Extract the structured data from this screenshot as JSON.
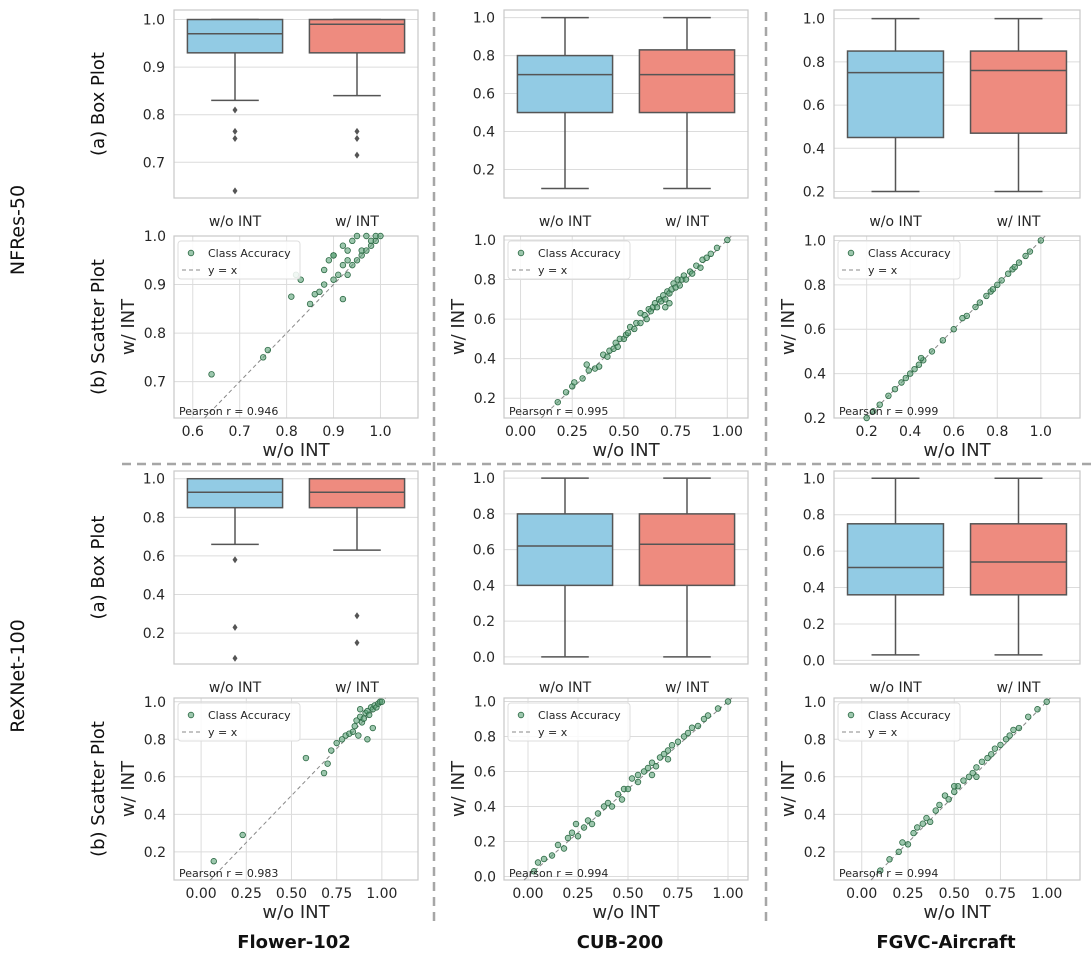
{
  "colors": {
    "without": "#92cbe4",
    "with": "#ee8b7f",
    "scatter": "#5aa177",
    "scatter_edge": "#2d6a45",
    "grid": "#dcdcdc",
    "divider": "#a6a6a6"
  },
  "labels": {
    "models": [
      "NFRes-50",
      "ReXNet-100"
    ],
    "datasets": [
      "Flower-102",
      "CUB-200",
      "FGVC-Aircraft"
    ],
    "box_row": "(a) Box Plot",
    "scatter_row": "(b) Scatter Plot",
    "categories": [
      "w/o INT",
      "w/ INT"
    ],
    "xlabel": "w/o INT",
    "ylabel": "w/ INT",
    "legend_points": "Class Accuracy",
    "legend_line": "y = x",
    "pearson_prefix": "Pearson r = "
  },
  "chart_data": [
    {
      "type": "box",
      "model": "NFRes-50",
      "dataset": "Flower-102",
      "ylim": [
        0.625,
        1.02
      ],
      "yticks": [
        0.7,
        0.8,
        0.9,
        1.0
      ],
      "series": [
        {
          "name": "w/o INT",
          "whislo": 0.83,
          "q1": 0.93,
          "median": 0.97,
          "q3": 1.0,
          "whishi": 1.0,
          "fliers": [
            0.81,
            0.765,
            0.75,
            0.64
          ]
        },
        {
          "name": "w/ INT",
          "whislo": 0.84,
          "q1": 0.93,
          "median": 0.99,
          "q3": 1.0,
          "whishi": 1.0,
          "fliers": [
            0.765,
            0.75,
            0.715
          ]
        }
      ]
    },
    {
      "type": "box",
      "model": "NFRes-50",
      "dataset": "CUB-200",
      "ylim": [
        0.05,
        1.04
      ],
      "yticks": [
        0.2,
        0.4,
        0.6,
        0.8,
        1.0
      ],
      "series": [
        {
          "name": "w/o INT",
          "whislo": 0.1,
          "q1": 0.5,
          "median": 0.7,
          "q3": 0.8,
          "whishi": 1.0,
          "fliers": []
        },
        {
          "name": "w/ INT",
          "whislo": 0.1,
          "q1": 0.5,
          "median": 0.7,
          "q3": 0.83,
          "whishi": 1.0,
          "fliers": []
        }
      ]
    },
    {
      "type": "box",
      "model": "NFRes-50",
      "dataset": "FGVC-Aircraft",
      "ylim": [
        0.17,
        1.04
      ],
      "yticks": [
        0.2,
        0.4,
        0.6,
        0.8,
        1.0
      ],
      "series": [
        {
          "name": "w/o INT",
          "whislo": 0.2,
          "q1": 0.45,
          "median": 0.75,
          "q3": 0.85,
          "whishi": 1.0,
          "fliers": []
        },
        {
          "name": "w/ INT",
          "whislo": 0.2,
          "q1": 0.47,
          "median": 0.76,
          "q3": 0.85,
          "whishi": 1.0,
          "fliers": []
        }
      ]
    },
    {
      "type": "scatter",
      "model": "NFRes-50",
      "dataset": "Flower-102",
      "xlim": [
        0.56,
        1.08
      ],
      "ylim": [
        0.625,
        1.0
      ],
      "xticks": [
        0.6,
        0.7,
        0.8,
        0.9,
        1.0
      ],
      "yticks": [
        0.7,
        0.8,
        0.9,
        1.0
      ],
      "pearson": "0.946",
      "points": [
        [
          0.64,
          0.715
        ],
        [
          0.75,
          0.75
        ],
        [
          0.76,
          0.765
        ],
        [
          0.81,
          0.875
        ],
        [
          0.82,
          0.92
        ],
        [
          0.83,
          0.91
        ],
        [
          0.85,
          0.86
        ],
        [
          0.86,
          0.88
        ],
        [
          0.87,
          0.885
        ],
        [
          0.88,
          0.9
        ],
        [
          0.88,
          0.93
        ],
        [
          0.89,
          0.95
        ],
        [
          0.9,
          0.91
        ],
        [
          0.9,
          0.96
        ],
        [
          0.91,
          0.92
        ],
        [
          0.92,
          0.87
        ],
        [
          0.92,
          0.94
        ],
        [
          0.92,
          0.98
        ],
        [
          0.93,
          0.95
        ],
        [
          0.93,
          0.92
        ],
        [
          0.94,
          0.94
        ],
        [
          0.94,
          0.99
        ],
        [
          0.95,
          0.95
        ],
        [
          0.95,
          1.0
        ],
        [
          0.96,
          0.96
        ],
        [
          0.96,
          0.97
        ],
        [
          0.97,
          1.0
        ],
        [
          0.97,
          0.97
        ],
        [
          0.98,
          0.98
        ],
        [
          0.98,
          0.99
        ],
        [
          0.99,
          0.99
        ],
        [
          0.99,
          1.0
        ],
        [
          1.0,
          1.0
        ],
        [
          0.9,
          0.96
        ],
        [
          0.93,
          0.97
        ]
      ]
    },
    {
      "type": "scatter",
      "model": "NFRes-50",
      "dataset": "CUB-200",
      "xlim": [
        -0.08,
        1.1
      ],
      "ylim": [
        0.1,
        1.02
      ],
      "xticks": [
        0.0,
        0.25,
        0.5,
        0.75,
        1.0
      ],
      "yticks": [
        0.2,
        0.4,
        0.6,
        0.8,
        1.0
      ],
      "pearson": "0.995",
      "points": [
        [
          0.18,
          0.18
        ],
        [
          0.22,
          0.23
        ],
        [
          0.25,
          0.26
        ],
        [
          0.26,
          0.28
        ],
        [
          0.3,
          0.3
        ],
        [
          0.32,
          0.37
        ],
        [
          0.33,
          0.34
        ],
        [
          0.36,
          0.35
        ],
        [
          0.38,
          0.36
        ],
        [
          0.4,
          0.42
        ],
        [
          0.42,
          0.41
        ],
        [
          0.43,
          0.44
        ],
        [
          0.45,
          0.45
        ],
        [
          0.46,
          0.48
        ],
        [
          0.47,
          0.46
        ],
        [
          0.48,
          0.5
        ],
        [
          0.5,
          0.5
        ],
        [
          0.51,
          0.52
        ],
        [
          0.52,
          0.53
        ],
        [
          0.53,
          0.56
        ],
        [
          0.55,
          0.55
        ],
        [
          0.56,
          0.58
        ],
        [
          0.58,
          0.58
        ],
        [
          0.6,
          0.62
        ],
        [
          0.61,
          0.6
        ],
        [
          0.62,
          0.65
        ],
        [
          0.63,
          0.64
        ],
        [
          0.64,
          0.66
        ],
        [
          0.65,
          0.68
        ],
        [
          0.66,
          0.66
        ],
        [
          0.67,
          0.7
        ],
        [
          0.68,
          0.69
        ],
        [
          0.69,
          0.72
        ],
        [
          0.7,
          0.7
        ],
        [
          0.71,
          0.74
        ],
        [
          0.72,
          0.73
        ],
        [
          0.73,
          0.75
        ],
        [
          0.74,
          0.78
        ],
        [
          0.75,
          0.76
        ],
        [
          0.76,
          0.8
        ],
        [
          0.77,
          0.77
        ],
        [
          0.78,
          0.8
        ],
        [
          0.79,
          0.82
        ],
        [
          0.8,
          0.8
        ],
        [
          0.82,
          0.84
        ],
        [
          0.83,
          0.83
        ],
        [
          0.85,
          0.87
        ],
        [
          0.87,
          0.86
        ],
        [
          0.88,
          0.9
        ],
        [
          0.9,
          0.91
        ],
        [
          0.92,
          0.93
        ],
        [
          0.95,
          0.96
        ],
        [
          1.0,
          1.0
        ],
        [
          0.7,
          0.66
        ],
        [
          0.72,
          0.68
        ],
        [
          0.58,
          0.63
        ]
      ]
    },
    {
      "type": "scatter",
      "model": "NFRes-50",
      "dataset": "FGVC-Aircraft",
      "xlim": [
        0.05,
        1.18
      ],
      "ylim": [
        0.2,
        1.02
      ],
      "xticks": [
        0.2,
        0.4,
        0.6,
        0.8,
        1.0
      ],
      "yticks": [
        0.2,
        0.4,
        0.6,
        0.8,
        1.0
      ],
      "pearson": "0.999",
      "points": [
        [
          0.2,
          0.2
        ],
        [
          0.23,
          0.23
        ],
        [
          0.26,
          0.26
        ],
        [
          0.3,
          0.3
        ],
        [
          0.33,
          0.33
        ],
        [
          0.36,
          0.36
        ],
        [
          0.38,
          0.38
        ],
        [
          0.4,
          0.4
        ],
        [
          0.42,
          0.42
        ],
        [
          0.44,
          0.44
        ],
        [
          0.46,
          0.46
        ],
        [
          0.45,
          0.47
        ],
        [
          0.5,
          0.5
        ],
        [
          0.55,
          0.55
        ],
        [
          0.6,
          0.6
        ],
        [
          0.64,
          0.65
        ],
        [
          0.66,
          0.66
        ],
        [
          0.7,
          0.7
        ],
        [
          0.72,
          0.72
        ],
        [
          0.75,
          0.75
        ],
        [
          0.77,
          0.77
        ],
        [
          0.78,
          0.78
        ],
        [
          0.8,
          0.8
        ],
        [
          0.82,
          0.82
        ],
        [
          0.85,
          0.85
        ],
        [
          0.87,
          0.87
        ],
        [
          0.88,
          0.88
        ],
        [
          0.9,
          0.9
        ],
        [
          0.93,
          0.93
        ],
        [
          0.95,
          0.95
        ],
        [
          1.0,
          1.0
        ]
      ]
    },
    {
      "type": "box",
      "model": "ReXNet-100",
      "dataset": "Flower-102",
      "ylim": [
        0.04,
        1.04
      ],
      "yticks": [
        0.2,
        0.4,
        0.6,
        0.8,
        1.0
      ],
      "series": [
        {
          "name": "w/o INT",
          "whislo": 0.66,
          "q1": 0.85,
          "median": 0.93,
          "q3": 1.0,
          "whishi": 1.0,
          "fliers": [
            0.58,
            0.23,
            0.07
          ]
        },
        {
          "name": "w/ INT",
          "whislo": 0.63,
          "q1": 0.85,
          "median": 0.93,
          "q3": 1.0,
          "whishi": 1.0,
          "fliers": [
            0.29,
            0.15
          ]
        }
      ]
    },
    {
      "type": "box",
      "model": "ReXNet-100",
      "dataset": "CUB-200",
      "ylim": [
        -0.04,
        1.04
      ],
      "yticks": [
        0.0,
        0.2,
        0.4,
        0.6,
        0.8,
        1.0
      ],
      "series": [
        {
          "name": "w/o INT",
          "whislo": 0.0,
          "q1": 0.4,
          "median": 0.62,
          "q3": 0.8,
          "whishi": 1.0,
          "fliers": []
        },
        {
          "name": "w/ INT",
          "whislo": 0.0,
          "q1": 0.4,
          "median": 0.63,
          "q3": 0.8,
          "whishi": 1.0,
          "fliers": []
        }
      ]
    },
    {
      "type": "box",
      "model": "ReXNet-100",
      "dataset": "FGVC-Aircraft",
      "ylim": [
        -0.02,
        1.04
      ],
      "yticks": [
        0.0,
        0.2,
        0.4,
        0.6,
        0.8,
        1.0
      ],
      "series": [
        {
          "name": "w/o INT",
          "whislo": 0.03,
          "q1": 0.36,
          "median": 0.51,
          "q3": 0.75,
          "whishi": 1.0,
          "fliers": []
        },
        {
          "name": "w/ INT",
          "whislo": 0.03,
          "q1": 0.36,
          "median": 0.54,
          "q3": 0.75,
          "whishi": 1.0,
          "fliers": []
        }
      ]
    },
    {
      "type": "scatter",
      "model": "ReXNet-100",
      "dataset": "Flower-102",
      "xlim": [
        -0.15,
        1.2
      ],
      "ylim": [
        0.05,
        1.02
      ],
      "xticks": [
        0.0,
        0.25,
        0.5,
        0.75,
        1.0
      ],
      "yticks": [
        0.2,
        0.4,
        0.6,
        0.8,
        1.0
      ],
      "pearson": "0.983",
      "points": [
        [
          0.07,
          0.15
        ],
        [
          0.23,
          0.29
        ],
        [
          0.58,
          0.7
        ],
        [
          0.68,
          0.62
        ],
        [
          0.7,
          0.67
        ],
        [
          0.72,
          0.74
        ],
        [
          0.75,
          0.78
        ],
        [
          0.78,
          0.8
        ],
        [
          0.8,
          0.82
        ],
        [
          0.82,
          0.83
        ],
        [
          0.84,
          0.84
        ],
        [
          0.85,
          0.87
        ],
        [
          0.86,
          0.9
        ],
        [
          0.87,
          0.82
        ],
        [
          0.88,
          0.92
        ],
        [
          0.89,
          0.89
        ],
        [
          0.9,
          0.91
        ],
        [
          0.91,
          0.94
        ],
        [
          0.92,
          0.95
        ],
        [
          0.93,
          0.93
        ],
        [
          0.94,
          0.97
        ],
        [
          0.95,
          0.96
        ],
        [
          0.96,
          0.98
        ],
        [
          0.97,
          0.97
        ],
        [
          0.98,
          0.99
        ],
        [
          0.99,
          1.0
        ],
        [
          1.0,
          1.0
        ],
        [
          0.92,
          0.8
        ],
        [
          0.95,
          0.86
        ],
        [
          0.88,
          0.96
        ]
      ]
    },
    {
      "type": "scatter",
      "model": "ReXNet-100",
      "dataset": "CUB-200",
      "xlim": [
        -0.12,
        1.1
      ],
      "ylim": [
        -0.02,
        1.02
      ],
      "xticks": [
        0.0,
        0.25,
        0.5,
        0.75,
        1.0
      ],
      "yticks": [
        0.0,
        0.2,
        0.4,
        0.6,
        0.8,
        1.0
      ],
      "pearson": "0.994",
      "points": [
        [
          0.03,
          0.03
        ],
        [
          0.05,
          0.08
        ],
        [
          0.08,
          0.1
        ],
        [
          0.12,
          0.12
        ],
        [
          0.15,
          0.18
        ],
        [
          0.18,
          0.16
        ],
        [
          0.2,
          0.22
        ],
        [
          0.22,
          0.25
        ],
        [
          0.24,
          0.3
        ],
        [
          0.25,
          0.23
        ],
        [
          0.28,
          0.28
        ],
        [
          0.3,
          0.32
        ],
        [
          0.32,
          0.3
        ],
        [
          0.35,
          0.36
        ],
        [
          0.38,
          0.4
        ],
        [
          0.4,
          0.42
        ],
        [
          0.42,
          0.4
        ],
        [
          0.45,
          0.47
        ],
        [
          0.48,
          0.5
        ],
        [
          0.5,
          0.5
        ],
        [
          0.52,
          0.56
        ],
        [
          0.55,
          0.54
        ],
        [
          0.58,
          0.6
        ],
        [
          0.6,
          0.62
        ],
        [
          0.62,
          0.65
        ],
        [
          0.64,
          0.63
        ],
        [
          0.66,
          0.68
        ],
        [
          0.68,
          0.7
        ],
        [
          0.7,
          0.72
        ],
        [
          0.72,
          0.75
        ],
        [
          0.75,
          0.77
        ],
        [
          0.78,
          0.8
        ],
        [
          0.8,
          0.82
        ],
        [
          0.82,
          0.85
        ],
        [
          0.85,
          0.86
        ],
        [
          0.88,
          0.9
        ],
        [
          0.9,
          0.92
        ],
        [
          0.95,
          0.96
        ],
        [
          1.0,
          1.0
        ],
        [
          0.55,
          0.58
        ],
        [
          0.62,
          0.58
        ],
        [
          0.7,
          0.67
        ],
        [
          0.47,
          0.44
        ]
      ]
    },
    {
      "type": "scatter",
      "model": "ReXNet-100",
      "dataset": "FGVC-Aircraft",
      "xlim": [
        -0.15,
        1.18
      ],
      "ylim": [
        0.05,
        1.02
      ],
      "xticks": [
        0.0,
        0.25,
        0.5,
        0.75,
        1.0
      ],
      "yticks": [
        0.2,
        0.4,
        0.6,
        0.8,
        1.0
      ],
      "pearson": "0.994",
      "points": [
        [
          0.1,
          0.1
        ],
        [
          0.15,
          0.16
        ],
        [
          0.2,
          0.2
        ],
        [
          0.22,
          0.25
        ],
        [
          0.25,
          0.24
        ],
        [
          0.28,
          0.3
        ],
        [
          0.3,
          0.33
        ],
        [
          0.33,
          0.35
        ],
        [
          0.35,
          0.38
        ],
        [
          0.37,
          0.36
        ],
        [
          0.4,
          0.42
        ],
        [
          0.42,
          0.45
        ],
        [
          0.45,
          0.5
        ],
        [
          0.47,
          0.48
        ],
        [
          0.5,
          0.52
        ],
        [
          0.52,
          0.55
        ],
        [
          0.55,
          0.58
        ],
        [
          0.58,
          0.6
        ],
        [
          0.6,
          0.62
        ],
        [
          0.62,
          0.65
        ],
        [
          0.65,
          0.68
        ],
        [
          0.68,
          0.7
        ],
        [
          0.7,
          0.72
        ],
        [
          0.72,
          0.75
        ],
        [
          0.75,
          0.77
        ],
        [
          0.78,
          0.8
        ],
        [
          0.8,
          0.82
        ],
        [
          0.82,
          0.85
        ],
        [
          0.85,
          0.86
        ],
        [
          0.9,
          0.92
        ],
        [
          0.95,
          0.96
        ],
        [
          1.0,
          1.0
        ],
        [
          0.5,
          0.55
        ],
        [
          0.62,
          0.6
        ]
      ]
    }
  ]
}
